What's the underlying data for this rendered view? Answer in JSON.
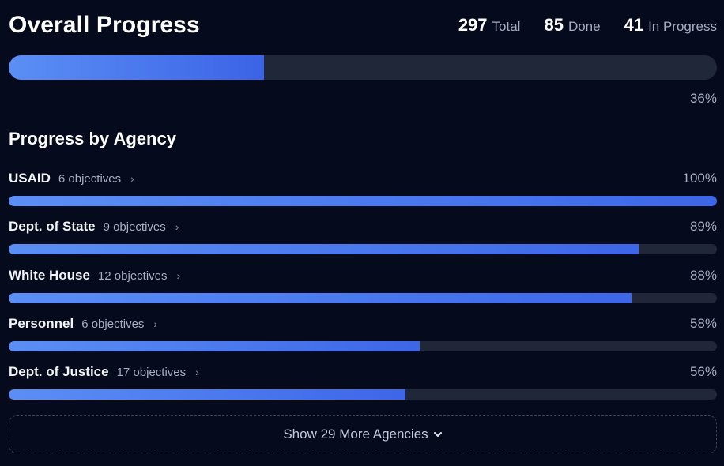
{
  "header": {
    "title": "Overall Progress",
    "stats": [
      {
        "value": "297",
        "label": "Total"
      },
      {
        "value": "85",
        "label": "Done"
      },
      {
        "value": "41",
        "label": "In Progress"
      }
    ]
  },
  "overall": {
    "percent_label": "36%",
    "progress": 0.36
  },
  "section_title": "Progress by Agency",
  "agencies": [
    {
      "name": "USAID",
      "objectives": "6 objectives",
      "percent_label": "100%",
      "progress": 1.0
    },
    {
      "name": "Dept. of State",
      "objectives": "9 objectives",
      "percent_label": "89%",
      "progress": 0.89
    },
    {
      "name": "White House",
      "objectives": "12 objectives",
      "percent_label": "88%",
      "progress": 0.88
    },
    {
      "name": "Personnel",
      "objectives": "6 objectives",
      "percent_label": "58%",
      "progress": 0.58
    },
    {
      "name": "Dept. of Justice",
      "objectives": "17 objectives",
      "percent_label": "56%",
      "progress": 0.56
    }
  ],
  "more_button": {
    "label": "Show 29 More Agencies",
    "icon": "chevron-down-icon"
  },
  "colors": {
    "background": "#050a1c",
    "bar_track": "#1f2739",
    "bar_fill_start": "#5b8ff5",
    "bar_fill_end": "#3b63e6",
    "muted_text": "#a6aec1"
  }
}
